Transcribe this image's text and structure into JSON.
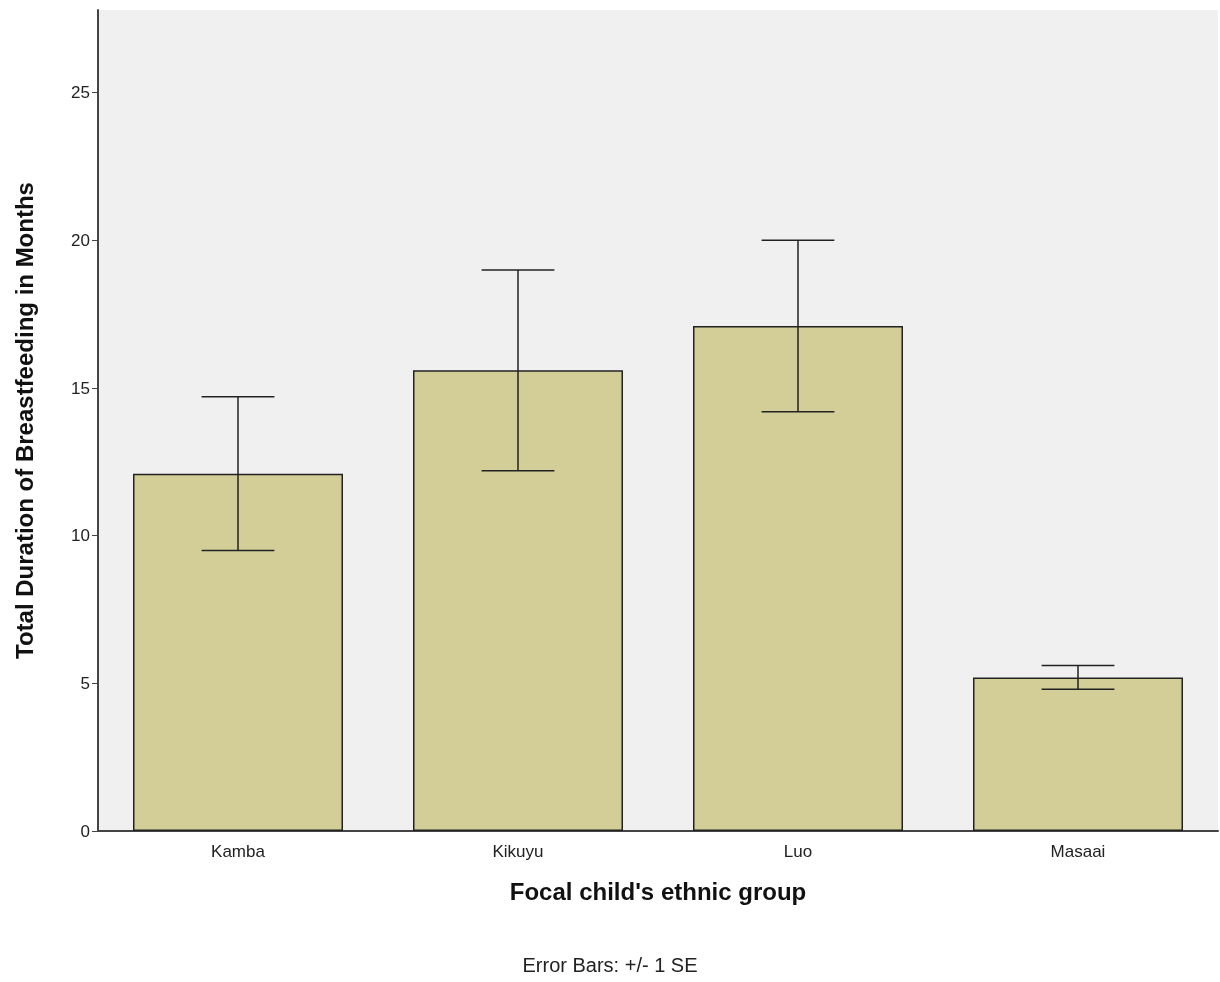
{
  "chart_data": {
    "type": "bar",
    "xlabel": "Focal child's ethnic group",
    "ylabel": "Total Duration of Breastfeeding in Months",
    "categories": [
      "Kamba",
      "Kikuyu",
      "Luo",
      "Masaai"
    ],
    "values": [
      12.1,
      15.6,
      17.1,
      5.2
    ],
    "errors": [
      2.6,
      3.4,
      2.9,
      0.4
    ],
    "color": "#d3ce97",
    "ylim": [
      0,
      27.8
    ],
    "yticks": [
      0,
      5,
      10,
      15,
      20,
      25
    ],
    "grid": false,
    "annotations": [
      "Error Bars: +/- 1 SE"
    ]
  }
}
